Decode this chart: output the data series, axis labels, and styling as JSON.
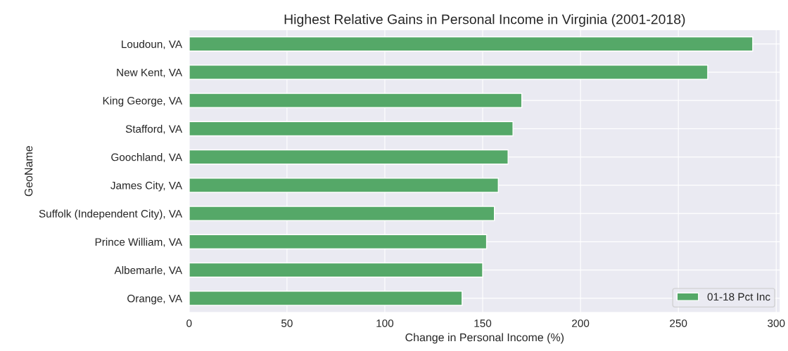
{
  "chart_data": {
    "type": "bar",
    "orientation": "horizontal",
    "title": "Highest Relative Gains in Personal Income in Virginia (2001-2018)",
    "xlabel": "Change in Personal Income (%)",
    "ylabel": "GeoName",
    "categories": [
      "Loudoun, VA",
      "New Kent, VA",
      "King George, VA",
      "Stafford, VA",
      "Goochland, VA",
      "James City, VA",
      "Suffolk (Independent City), VA",
      "Prince William, VA",
      "Albemarle, VA",
      "Orange, VA"
    ],
    "series": [
      {
        "name": "01-18 Pct Inc",
        "color": "#55a868",
        "values": [
          288,
          265,
          170,
          165.5,
          163,
          158,
          156,
          152,
          150,
          139.5
        ]
      }
    ],
    "xlim": [
      0,
      302
    ],
    "xticks": [
      0,
      50,
      100,
      150,
      200,
      250,
      300
    ],
    "grid": true,
    "legend": "lower right"
  }
}
